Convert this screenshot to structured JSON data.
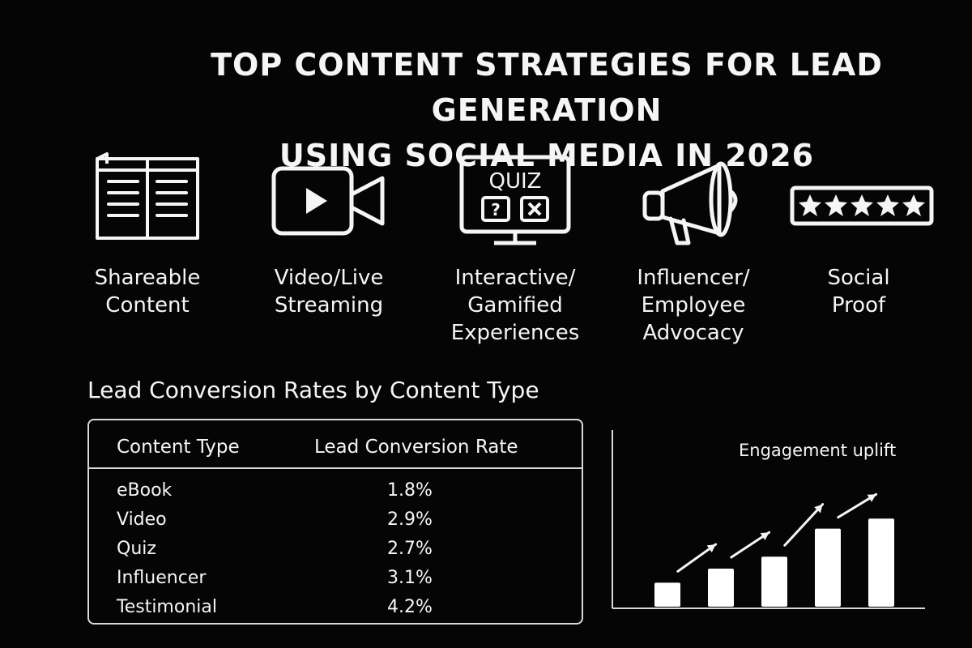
{
  "title_line1": "TOP CONTENT STRATEGIES FOR LEAD GENERATION",
  "title_line2": "USING SOCIAL MEDIA IN 2026",
  "strategies": [
    {
      "icon": "open-book-icon",
      "line1": "Shareable",
      "line2": "Content",
      "line3": ""
    },
    {
      "icon": "video-camera-icon",
      "line1": "Video/Live",
      "line2": "Streaming",
      "line3": ""
    },
    {
      "icon": "quiz-monitor-icon",
      "line1": "Interactive/",
      "line2": "Gamified",
      "line3": "Experiences",
      "icon_text": "QUIZ"
    },
    {
      "icon": "megaphone-icon",
      "line1": "Influencer/",
      "line2": "Employee",
      "line3": "Advocacy"
    },
    {
      "icon": "five-star-rating-icon",
      "line1": "Social",
      "line2": "Proof",
      "line3": ""
    }
  ],
  "table": {
    "title": "Lead Conversion Rates by Content Type",
    "headers": [
      "Content Type",
      "Lead Conversion Rate"
    ],
    "rows": [
      {
        "type": "eBook",
        "rate": "1.8%"
      },
      {
        "type": "Video",
        "rate": "2.9%"
      },
      {
        "type": "Quiz",
        "rate": "2.7%"
      },
      {
        "type": "Influencer",
        "rate": "3.1%"
      },
      {
        "type": "Testimonial",
        "rate": "4.2%"
      }
    ]
  },
  "chart_data": {
    "type": "bar",
    "title": "Engagement uplift",
    "categories": [
      "",
      "",
      "",
      "",
      ""
    ],
    "values": [
      1.2,
      1.9,
      2.5,
      3.9,
      4.4
    ],
    "ylim": [
      0,
      8.5
    ],
    "grid": false,
    "legend": "none",
    "arrows_between_bars": true,
    "bar_color": "#ffffff"
  }
}
